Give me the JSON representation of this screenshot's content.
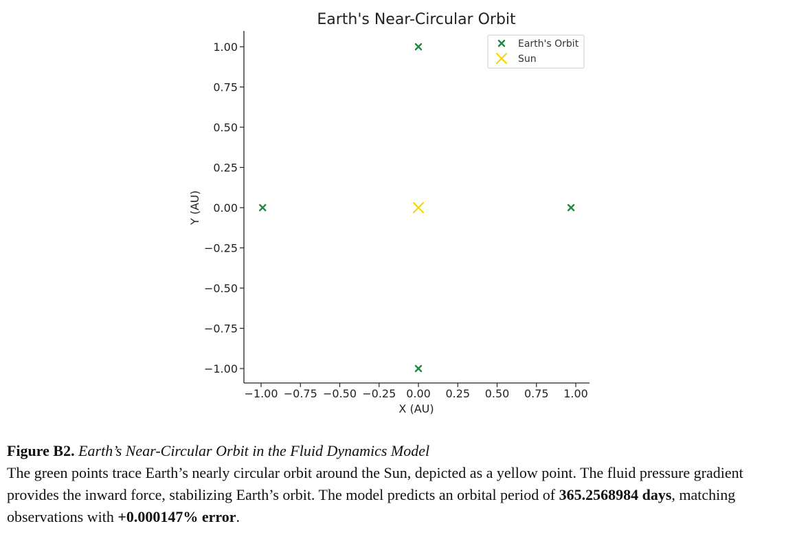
{
  "chart_data": {
    "type": "scatter",
    "title": "Earth's Near-Circular Orbit",
    "xlabel": "X (AU)",
    "ylabel": "Y (AU)",
    "xlim": [
      -1.08,
      1.08
    ],
    "ylim": [
      -1.1,
      1.1
    ],
    "x_ticks": [
      "−1.00",
      "−0.75",
      "−0.50",
      "−0.25",
      "0.00",
      "0.25",
      "0.50",
      "0.75",
      "1.00"
    ],
    "x_tick_values": [
      -1.0,
      -0.75,
      -0.5,
      -0.25,
      0.0,
      0.25,
      0.5,
      0.75,
      1.0
    ],
    "y_ticks": [
      "1.00",
      "0.75",
      "0.50",
      "0.25",
      "0.00",
      "−0.25",
      "−0.50",
      "−0.75",
      "−1.00"
    ],
    "y_tick_values": [
      1.0,
      0.75,
      0.5,
      0.25,
      0.0,
      -0.25,
      -0.5,
      -0.75,
      -1.0
    ],
    "grid": false,
    "legend_position": "top-right",
    "series": [
      {
        "name": "Earth's Orbit",
        "marker": "x",
        "color": "#1a8a3c",
        "points": [
          {
            "x": 0.0,
            "y": 1.0
          },
          {
            "x": -0.99,
            "y": 0.0
          },
          {
            "x": 0.0,
            "y": -1.0
          },
          {
            "x": 0.97,
            "y": 0.0
          }
        ]
      },
      {
        "name": "Sun",
        "marker": "x",
        "color": "#f5d800",
        "points": [
          {
            "x": 0.0,
            "y": 0.0
          }
        ]
      }
    ]
  },
  "caption": {
    "label": "Figure B2.",
    "title": "Earth’s Near-Circular Orbit in the Fluid Dynamics Model",
    "body_part1": "The green points trace Earth’s nearly circular orbit around the Sun, depicted as a yellow point. The fluid pressure gradient provides the inward force, stabilizing Earth’s orbit. The model predicts an orbital period of ",
    "period": "365.2568984 days",
    "body_part2": ", matching observations with ",
    "error": "+0.000147% error",
    "body_part3": "."
  }
}
